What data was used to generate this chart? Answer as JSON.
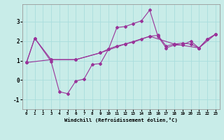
{
  "xlabel": "Windchill (Refroidissement éolien,°C)",
  "background_color": "#c8ece8",
  "line_color": "#993399",
  "line1_x": [
    0,
    1,
    3,
    4,
    5,
    6,
    7,
    8,
    9,
    10,
    11,
    12,
    13,
    14,
    15,
    16,
    17,
    18,
    19,
    20,
    21,
    22,
    23
  ],
  "line1_y": [
    0.9,
    2.15,
    0.95,
    -0.6,
    -0.7,
    -0.05,
    0.05,
    0.8,
    0.85,
    1.6,
    2.7,
    2.75,
    2.9,
    3.05,
    3.6,
    2.25,
    1.65,
    1.8,
    1.8,
    2.0,
    1.65,
    2.1,
    2.35
  ],
  "line2_x": [
    0,
    1,
    3,
    6,
    9,
    10,
    11,
    12,
    13,
    14,
    15,
    16,
    17,
    18,
    19,
    20,
    21,
    22,
    23
  ],
  "line2_y": [
    0.9,
    2.15,
    1.05,
    1.05,
    1.4,
    1.6,
    1.75,
    1.85,
    1.95,
    2.1,
    2.25,
    2.3,
    1.75,
    1.85,
    1.9,
    1.85,
    1.65,
    2.1,
    2.35
  ],
  "line3_x": [
    0,
    3,
    6,
    9,
    12,
    15,
    18,
    21,
    23
  ],
  "line3_y": [
    0.9,
    1.05,
    1.05,
    1.4,
    1.85,
    2.25,
    1.85,
    1.65,
    2.35
  ],
  "ylim": [
    -1.5,
    3.9
  ],
  "yticks": [
    -1,
    0,
    1,
    2,
    3
  ],
  "xticks": [
    0,
    1,
    2,
    3,
    4,
    5,
    6,
    7,
    8,
    9,
    10,
    11,
    12,
    13,
    14,
    15,
    16,
    17,
    18,
    19,
    20,
    21,
    22,
    23
  ],
  "grid_color": "#aadddd",
  "marker": "D",
  "marker_size": 2.0,
  "linewidth": 0.8
}
